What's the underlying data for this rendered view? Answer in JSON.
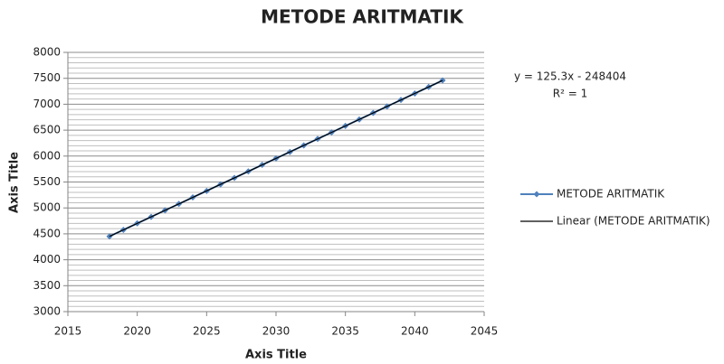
{
  "chart_data": {
    "type": "scatter-line",
    "title": "METODE ARITMATIK",
    "x_label": "Axis Title",
    "y_label": "Axis Title",
    "x": [
      2018,
      2019,
      2020,
      2021,
      2022,
      2023,
      2024,
      2025,
      2026,
      2027,
      2028,
      2029,
      2030,
      2031,
      2032,
      2033,
      2034,
      2035,
      2036,
      2037,
      2038,
      2039,
      2040,
      2041,
      2042
    ],
    "series": [
      {
        "name": "METODE ARITMATIK",
        "color": "#4f81bd",
        "values": [
          4451,
          4577,
          4702,
          4827,
          4953,
          5078,
          5203,
          5329,
          5454,
          5579,
          5704,
          5830,
          5955,
          6080,
          6206,
          6331,
          6456,
          6582,
          6707,
          6832,
          6957,
          7083,
          7208,
          7333,
          7459
        ]
      }
    ],
    "trendline": {
      "name": "Linear (METODE ARITMATIK)",
      "color": "#000000",
      "slope": 125.3,
      "intercept": -248404,
      "equation": "y = 125.3x - 248404",
      "r2_label": "R² = 1"
    },
    "xlim": [
      2015,
      2045
    ],
    "xticks": [
      2015,
      2020,
      2025,
      2030,
      2035,
      2040,
      2045
    ],
    "ylim": [
      3000,
      8000
    ],
    "yticks": [
      3000,
      3500,
      4000,
      4500,
      5000,
      5500,
      6000,
      6500,
      7000,
      7500,
      8000
    ],
    "yminorticks": [
      3100,
      3200,
      3300,
      3400,
      3600,
      3700,
      3800,
      3900,
      4100,
      4200,
      4300,
      4400,
      4600,
      4700,
      4800,
      4900,
      5100,
      5200,
      5300,
      5400,
      5600,
      5700,
      5800,
      5900,
      6100,
      6200,
      6300,
      6400,
      6600,
      6700,
      6800,
      6900,
      7100,
      7200,
      7300,
      7400,
      7600,
      7700,
      7800,
      7900
    ],
    "grid": true,
    "legend": "right"
  }
}
